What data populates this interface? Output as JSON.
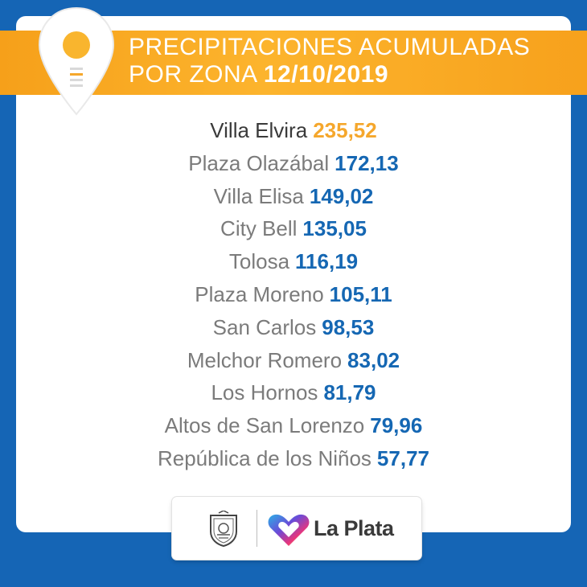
{
  "header": {
    "title_line1": "PRECIPITACIONES ACUMULADAS",
    "title_line2": "POR ZONA",
    "date": "12/10/2019",
    "icon": "location-pin-icon"
  },
  "zones": [
    {
      "name": "Villa Elvira",
      "value": "235,52"
    },
    {
      "name": "Plaza Olazábal",
      "value": "172,13"
    },
    {
      "name": "Villa Elisa",
      "value": "149,02"
    },
    {
      "name": "City Bell",
      "value": "135,05"
    },
    {
      "name": "Tolosa",
      "value": "116,19"
    },
    {
      "name": "Plaza Moreno",
      "value": "105,11"
    },
    {
      "name": "San Carlos",
      "value": "98,53"
    },
    {
      "name": "Melchor Romero",
      "value": "83,02"
    },
    {
      "name": "Los Hornos",
      "value": "81,79"
    },
    {
      "name": "Altos de San Lorenzo",
      "value": "79,96"
    },
    {
      "name": "República de los Niños",
      "value": "57,77"
    }
  ],
  "footer": {
    "brand": "La Plata",
    "seal_icon": "city-seal-icon",
    "logo_icon": "heart-logo-icon"
  },
  "colors": {
    "background": "#1565b5",
    "banner": "#fcb42d",
    "value": "#1567b3",
    "highlight": "#f5a72c"
  }
}
